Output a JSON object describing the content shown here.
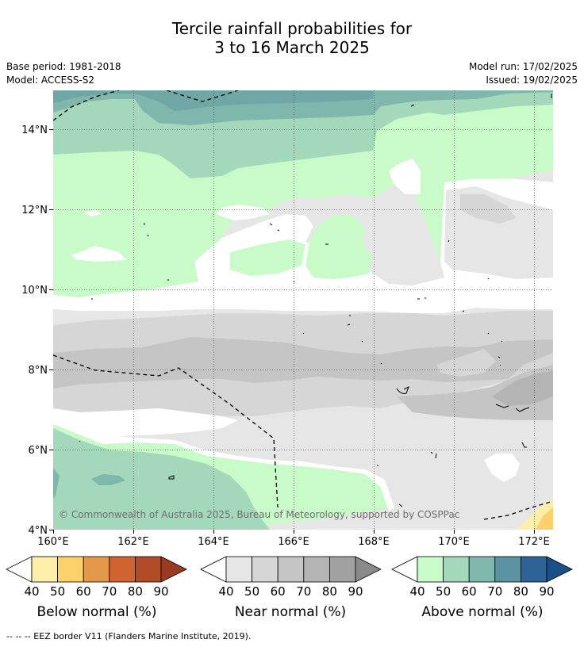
{
  "title_line1": "Tercile rainfall probabilities for",
  "title_line2": "3 to 16 March 2025",
  "meta": {
    "base_period": "Base period: 1981-2018",
    "model": "Model: ACCESS-S2",
    "model_run": "Model run: 17/02/2025",
    "issued": "Issued: 19/02/2025"
  },
  "map": {
    "lat_labels": [
      "14°N",
      "12°N",
      "10°N",
      "8°N",
      "6°N",
      "4°N"
    ],
    "lon_labels": [
      "160°E",
      "162°E",
      "164°E",
      "166°E",
      "168°E",
      "170°E",
      "172°E"
    ],
    "lon_range": [
      160,
      172.5
    ],
    "lat_range": [
      4,
      15
    ],
    "copyright": "© Commonwealth of Australia 2025, Bureau of Meteorology, supported by COSPPac"
  },
  "legends": [
    {
      "name": "Below normal (%)",
      "ticks": [
        "40",
        "50",
        "60",
        "70",
        "80",
        "90"
      ],
      "colors": [
        "#ffeeaa",
        "#fdd16a",
        "#e3984c",
        "#d06430",
        "#b24b28",
        "#9a3a1f"
      ]
    },
    {
      "name": "Near normal (%)",
      "ticks": [
        "40",
        "50",
        "60",
        "70",
        "80",
        "90"
      ],
      "colors": [
        "#e6e6e6",
        "#d6d6d6",
        "#c5c5c5",
        "#b4b4b4",
        "#a1a1a1",
        "#8a8a8a"
      ]
    },
    {
      "name": "Above normal (%)",
      "ticks": [
        "40",
        "50",
        "60",
        "70",
        "80",
        "90"
      ],
      "colors": [
        "#c8fbc8",
        "#a3d8bb",
        "#80b7ad",
        "#5b93a2",
        "#2d6396",
        "#1b4f87"
      ]
    }
  ],
  "footnote": "--  --  -- EEZ border V11 (Flanders Marine Institute, 2019)."
}
